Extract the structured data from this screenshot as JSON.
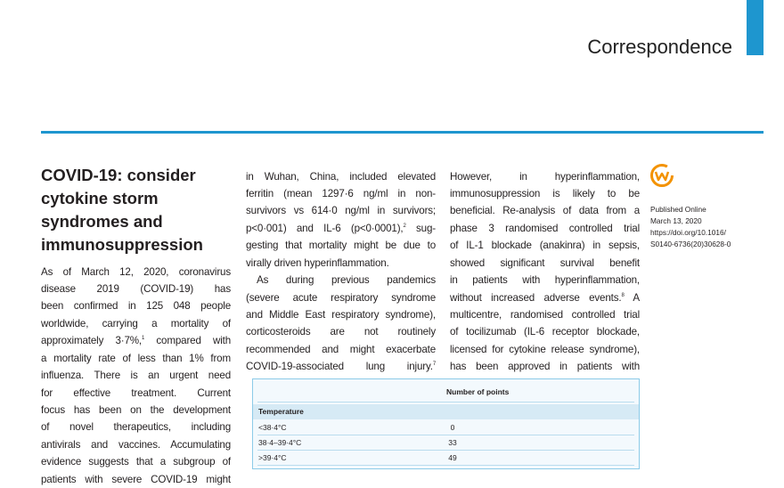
{
  "header": "Correspondence",
  "columns": [
    {
      "title": [
        "COVID-19: consider",
        "cytokine storm",
        "syndromes and",
        "immunosuppression"
      ],
      "paragraphs": [
        {
          "indent": false,
          "lines": [
            "As of March 12, 2020, coronavirus",
            "disease 2019 (COVID-19) has",
            "been confirmed in 125 048 people",
            "worldwide, carrying a mortality of",
            {
              "parts": [
                "approximately 3·7%,",
                {
                  "sup": "1"
                },
                " compared with"
              ]
            },
            "a mortality rate of less than 1% from",
            "influenza. There is an urgent need",
            "for effective treatment. Current",
            "focus has been on the development",
            "of novel therapeutics, including",
            "antivirals and vaccines. Accumulating",
            "evidence suggests that a subgroup of",
            "patients with severe COVID-19 might"
          ]
        }
      ]
    },
    {
      "paragraphs": [
        {
          "indent": false,
          "lines": [
            "in Wuhan, China, included elevated",
            "ferritin (mean 1297·6 ng/ml in non-",
            "survivors vs 614·0 ng/ml in survivors;",
            {
              "parts": [
                "p<0·001) and IL-6 (p<0·0001),",
                {
                  "sup": "2"
                },
                " sug-"
              ]
            },
            "gesting that mortality might be due to",
            "virally driven hyperinflammation."
          ]
        },
        {
          "indent": true,
          "lines": [
            "As during previous pandemics",
            "(severe acute respiratory syndrome",
            "and Middle East respiratory syndrome),",
            "corticosteroids are not routinely",
            "recommended and might exacerbate",
            {
              "parts": [
                "COVID-19-associated lung injury.",
                {
                  "sup": "7"
                }
              ]
            }
          ]
        }
      ]
    },
    {
      "paragraphs": [
        {
          "indent": false,
          "lines": [
            "However, in hyperinflammation,",
            "immunosuppression is likely to be",
            "beneficial. Re-analysis of data from a",
            "phase 3 randomised controlled trial",
            "of IL-1 blockade (anakinra) in sepsis,",
            "showed significant survival benefit",
            "in patients with hyperinflammation,",
            {
              "parts": [
                "without increased adverse events.",
                {
                  "sup": "8"
                },
                " A"
              ]
            },
            "multicentre, randomised controlled trial",
            "of tocilizumab (IL-6 receptor blockade,",
            "licensed for cytokine release syndrome),",
            "has been approved in patients with"
          ]
        }
      ]
    }
  ],
  "sidebar": [
    "Published Online",
    "March 13, 2020",
    "https://doi.org/10.1016/",
    "S0140-6736(20)30628-0"
  ],
  "table": {
    "header": "Number of points",
    "sections": [
      {
        "title": "Temperature",
        "rows": [
          [
            "<38·4°C",
            0
          ],
          [
            "38·4–39·4°C",
            33
          ],
          [
            ">39·4°C",
            49
          ]
        ]
      }
    ]
  }
}
